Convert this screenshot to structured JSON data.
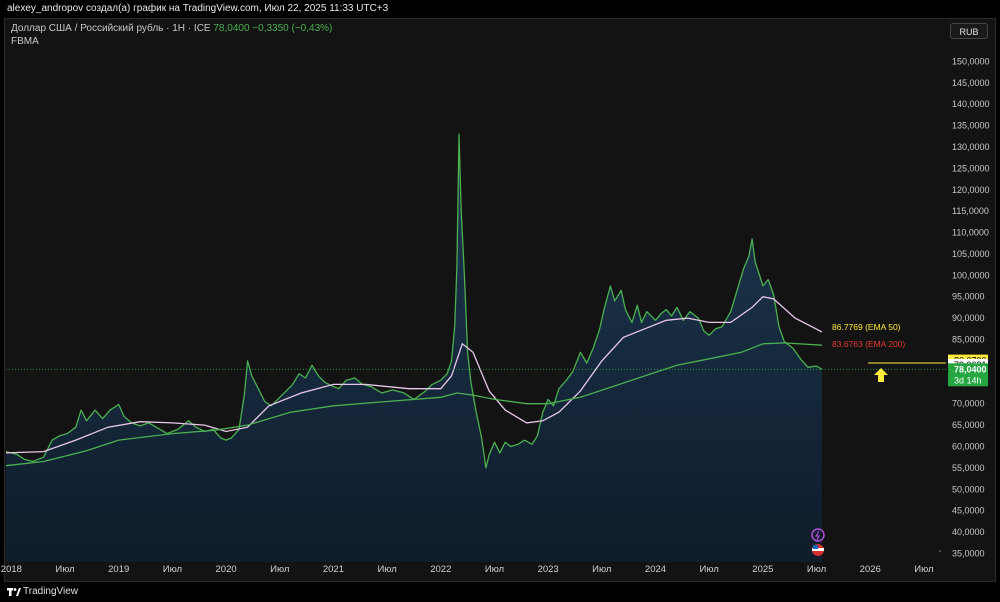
{
  "topbar": {
    "title": "alexey_andropov создал(а) график на TradingView.com, Июл 22, 2025 11:33 UTC+3"
  },
  "legend": {
    "symbol": "Доллар США / Российский рубль · 1Н · ICE",
    "price": "78,0400",
    "change": "−0,3350 (−0,43%)",
    "indicator": "FBMA"
  },
  "currency_button": "RUB",
  "footer": {
    "brand": "TradingView"
  },
  "colors": {
    "price_line": "#4caf50",
    "ema50": "#e8c8e8",
    "ema200": "#4caf50",
    "current_price": "#26a641",
    "ema50_label": "#ffeb3b",
    "ema200_label": "#e53935",
    "arrow": "#ffeb3b",
    "area_top": "#1e3a55"
  },
  "chart_data": {
    "type": "area",
    "ylim": [
      33000,
      155000
    ],
    "y_ticks": [
      "150,0000",
      "145,0000",
      "140,0000",
      "135,0000",
      "130,0000",
      "125,0000",
      "120,0000",
      "115,0000",
      "110,0000",
      "105,0000",
      "100,0000",
      "95,0000",
      "90,0000",
      "85,0000",
      "75,0000",
      "70,0000",
      "65,0000",
      "60,0000",
      "55,0000",
      "50,0000",
      "45,0000",
      "40,0000",
      "35,0000"
    ],
    "y_tick_values": [
      150000,
      145000,
      140000,
      135000,
      130000,
      125000,
      120000,
      115000,
      110000,
      105000,
      100000,
      95000,
      90000,
      85000,
      75000,
      70000,
      65000,
      60000,
      55000,
      50000,
      45000,
      40000,
      35000
    ],
    "x_ticks": [
      {
        "label": "2018",
        "t": 2018.0
      },
      {
        "label": "Июл",
        "t": 2018.5
      },
      {
        "label": "2019",
        "t": 2019.0
      },
      {
        "label": "Июл",
        "t": 2019.5
      },
      {
        "label": "2020",
        "t": 2020.0
      },
      {
        "label": "Июл",
        "t": 2020.5
      },
      {
        "label": "2021",
        "t": 2021.0
      },
      {
        "label": "Июл",
        "t": 2021.5
      },
      {
        "label": "2022",
        "t": 2022.0
      },
      {
        "label": "Июл",
        "t": 2022.5
      },
      {
        "label": "2023",
        "t": 2023.0
      },
      {
        "label": "Июл",
        "t": 2023.5
      },
      {
        "label": "2024",
        "t": 2024.0
      },
      {
        "label": "Июл",
        "t": 2024.5
      },
      {
        "label": "2025",
        "t": 2025.0
      },
      {
        "label": "Июл",
        "t": 2025.5
      },
      {
        "label": "2026",
        "t": 2026.0
      },
      {
        "label": "Июл",
        "t": 2026.5
      }
    ],
    "xlim": [
      2017.95,
      2026.65
    ],
    "series": [
      {
        "points": [
          [
            2017.95,
            58800
          ],
          [
            2018.05,
            58200
          ],
          [
            2018.12,
            57000
          ],
          [
            2018.2,
            56500
          ],
          [
            2018.3,
            57500
          ],
          [
            2018.38,
            61500
          ],
          [
            2018.45,
            62500
          ],
          [
            2018.52,
            63000
          ],
          [
            2018.6,
            64500
          ],
          [
            2018.65,
            68500
          ],
          [
            2018.7,
            66000
          ],
          [
            2018.78,
            68500
          ],
          [
            2018.85,
            66500
          ],
          [
            2018.92,
            68500
          ],
          [
            2019.0,
            69800
          ],
          [
            2019.05,
            67000
          ],
          [
            2019.12,
            65500
          ],
          [
            2019.2,
            64800
          ],
          [
            2019.28,
            65500
          ],
          [
            2019.35,
            64500
          ],
          [
            2019.45,
            63000
          ],
          [
            2019.55,
            64000
          ],
          [
            2019.65,
            66000
          ],
          [
            2019.72,
            64500
          ],
          [
            2019.8,
            63500
          ],
          [
            2019.88,
            64000
          ],
          [
            2019.95,
            62000
          ],
          [
            2020.0,
            61500
          ],
          [
            2020.05,
            62000
          ],
          [
            2020.12,
            64000
          ],
          [
            2020.17,
            72000
          ],
          [
            2020.2,
            80000
          ],
          [
            2020.24,
            76500
          ],
          [
            2020.3,
            73500
          ],
          [
            2020.36,
            70500
          ],
          [
            2020.42,
            69500
          ],
          [
            2020.5,
            71500
          ],
          [
            2020.56,
            73000
          ],
          [
            2020.62,
            74500
          ],
          [
            2020.68,
            77000
          ],
          [
            2020.74,
            76000
          ],
          [
            2020.8,
            79000
          ],
          [
            2020.86,
            76500
          ],
          [
            2020.92,
            75000
          ],
          [
            2021.0,
            74000
          ],
          [
            2021.05,
            73500
          ],
          [
            2021.12,
            75500
          ],
          [
            2021.2,
            76000
          ],
          [
            2021.27,
            74500
          ],
          [
            2021.35,
            74000
          ],
          [
            2021.45,
            72500
          ],
          [
            2021.55,
            73200
          ],
          [
            2021.65,
            72600
          ],
          [
            2021.75,
            71000
          ],
          [
            2021.85,
            72800
          ],
          [
            2021.92,
            74500
          ],
          [
            2022.0,
            75500
          ],
          [
            2022.06,
            77000
          ],
          [
            2022.1,
            80000
          ],
          [
            2022.13,
            88000
          ],
          [
            2022.15,
            102000
          ],
          [
            2022.17,
            133000
          ],
          [
            2022.19,
            115000
          ],
          [
            2022.22,
            100000
          ],
          [
            2022.25,
            82000
          ],
          [
            2022.28,
            75000
          ],
          [
            2022.33,
            68000
          ],
          [
            2022.38,
            62000
          ],
          [
            2022.42,
            55000
          ],
          [
            2022.45,
            58000
          ],
          [
            2022.5,
            61000
          ],
          [
            2022.55,
            58500
          ],
          [
            2022.6,
            61000
          ],
          [
            2022.65,
            60000
          ],
          [
            2022.72,
            60500
          ],
          [
            2022.78,
            61500
          ],
          [
            2022.85,
            60500
          ],
          [
            2022.9,
            62500
          ],
          [
            2022.95,
            68000
          ],
          [
            2023.0,
            71000
          ],
          [
            2023.05,
            69500
          ],
          [
            2023.1,
            73500
          ],
          [
            2023.17,
            75500
          ],
          [
            2023.23,
            77500
          ],
          [
            2023.3,
            82000
          ],
          [
            2023.36,
            79500
          ],
          [
            2023.42,
            83000
          ],
          [
            2023.48,
            87500
          ],
          [
            2023.52,
            92000
          ],
          [
            2023.58,
            97500
          ],
          [
            2023.62,
            94000
          ],
          [
            2023.68,
            96500
          ],
          [
            2023.72,
            92000
          ],
          [
            2023.78,
            89000
          ],
          [
            2023.83,
            93000
          ],
          [
            2023.87,
            89000
          ],
          [
            2023.92,
            91500
          ],
          [
            2024.0,
            89500
          ],
          [
            2024.05,
            91000
          ],
          [
            2024.1,
            92000
          ],
          [
            2024.15,
            90500
          ],
          [
            2024.2,
            92500
          ],
          [
            2024.26,
            89500
          ],
          [
            2024.32,
            91500
          ],
          [
            2024.4,
            90000
          ],
          [
            2024.45,
            87000
          ],
          [
            2024.5,
            86000
          ],
          [
            2024.56,
            87500
          ],
          [
            2024.62,
            88000
          ],
          [
            2024.7,
            91500
          ],
          [
            2024.76,
            96500
          ],
          [
            2024.82,
            101500
          ],
          [
            2024.87,
            104500
          ],
          [
            2024.9,
            108500
          ],
          [
            2024.93,
            103000
          ],
          [
            2024.97,
            100000
          ],
          [
            2025.0,
            97500
          ],
          [
            2025.05,
            99000
          ],
          [
            2025.1,
            95500
          ],
          [
            2025.15,
            88000
          ],
          [
            2025.2,
            84500
          ],
          [
            2025.28,
            83000
          ],
          [
            2025.35,
            80500
          ],
          [
            2025.42,
            78500
          ],
          [
            2025.5,
            78800
          ],
          [
            2025.55,
            78040
          ]
        ]
      },
      {
        "name": "EMA 50",
        "points": [
          [
            2017.95,
            58500
          ],
          [
            2018.3,
            58800
          ],
          [
            2018.6,
            61500
          ],
          [
            2018.9,
            64500
          ],
          [
            2019.2,
            65800
          ],
          [
            2019.5,
            65500
          ],
          [
            2019.8,
            65000
          ],
          [
            2020.0,
            63500
          ],
          [
            2020.2,
            64500
          ],
          [
            2020.4,
            69500
          ],
          [
            2020.7,
            72500
          ],
          [
            2021.0,
            74500
          ],
          [
            2021.3,
            74500
          ],
          [
            2021.7,
            73500
          ],
          [
            2022.0,
            73500
          ],
          [
            2022.1,
            76500
          ],
          [
            2022.2,
            84000
          ],
          [
            2022.3,
            82000
          ],
          [
            2022.45,
            73000
          ],
          [
            2022.6,
            68500
          ],
          [
            2022.8,
            65500
          ],
          [
            2022.95,
            66000
          ],
          [
            2023.1,
            68000
          ],
          [
            2023.3,
            73000
          ],
          [
            2023.5,
            80000
          ],
          [
            2023.7,
            85500
          ],
          [
            2023.9,
            87500
          ],
          [
            2024.1,
            89500
          ],
          [
            2024.3,
            90000
          ],
          [
            2024.5,
            89000
          ],
          [
            2024.7,
            89000
          ],
          [
            2024.9,
            92500
          ],
          [
            2025.0,
            95000
          ],
          [
            2025.1,
            94500
          ],
          [
            2025.3,
            90000
          ],
          [
            2025.55,
            86777
          ]
        ]
      },
      {
        "name": "EMA 200",
        "points": [
          [
            2017.95,
            55500
          ],
          [
            2018.3,
            56500
          ],
          [
            2018.7,
            59000
          ],
          [
            2019.0,
            61500
          ],
          [
            2019.5,
            63000
          ],
          [
            2019.9,
            63800
          ],
          [
            2020.2,
            65000
          ],
          [
            2020.6,
            68000
          ],
          [
            2021.0,
            69500
          ],
          [
            2021.5,
            70500
          ],
          [
            2022.0,
            71500
          ],
          [
            2022.15,
            72500
          ],
          [
            2022.3,
            72000
          ],
          [
            2022.5,
            71000
          ],
          [
            2022.8,
            70000
          ],
          [
            2023.0,
            70000
          ],
          [
            2023.3,
            71500
          ],
          [
            2023.6,
            74000
          ],
          [
            2023.9,
            76500
          ],
          [
            2024.2,
            79000
          ],
          [
            2024.5,
            80500
          ],
          [
            2024.8,
            82000
          ],
          [
            2025.0,
            84000
          ],
          [
            2025.2,
            84200
          ],
          [
            2025.55,
            83676
          ]
        ]
      }
    ]
  },
  "price_labels": {
    "ema50": "86.7769 (EMA 50)",
    "ema200": "83.6763 (EMA 200)",
    "box1": "80,0700",
    "box2": "79,0631",
    "current": "78,0400",
    "countdown": "3d 14h"
  }
}
